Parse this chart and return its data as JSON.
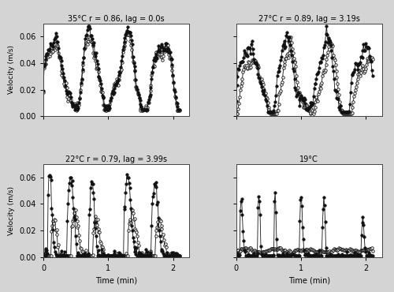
{
  "titles": [
    "35°C r = 0.86, lag = 0.0s",
    "27°C r = 0.89, lag = 3.19s",
    "22°C r = 0.79, lag = 3.99s",
    "19°C"
  ],
  "ylim": [
    0,
    0.07
  ],
  "xlim": [
    0,
    2.25
  ],
  "yticks": [
    0.0,
    0.02,
    0.04,
    0.06
  ],
  "xticks": [
    0,
    1,
    2
  ],
  "yticklabels": [
    "0.00",
    "0.02",
    "0.04",
    "0.06"
  ],
  "xticklabels": [
    "0",
    "1",
    "2"
  ],
  "ylabel": "Velocity (m/s)",
  "xlabel": "Time (min)",
  "bg_color": "#ffffff",
  "figure_bg": "#d4d4d4",
  "markersize": 2.5,
  "linewidth": 0.6,
  "open_face": "#ffffff",
  "filled_face": "#111111",
  "edge_color": "#111111"
}
